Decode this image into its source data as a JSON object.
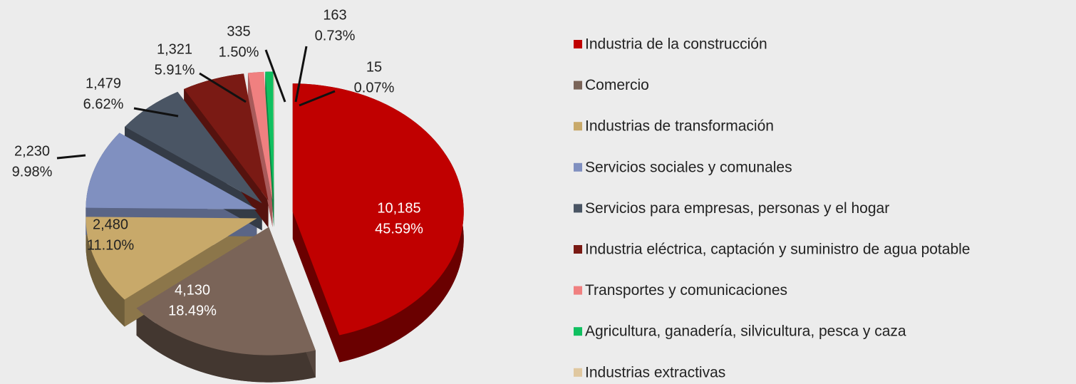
{
  "chart_data": {
    "type": "pie",
    "categories": [
      "Industria de la construcción",
      "Comercio",
      "Industrias de transformación",
      "Servicios sociales y comunales",
      "Servicios para empresas, personas y el hogar",
      "Industria eléctrica, captación y suministro de agua potable",
      "Transportes y comunicaciones",
      "Agricultura, ganadería, silvicultura, pesca y caza",
      "Industrias extractivas"
    ],
    "values": [
      10185,
      4130,
      2480,
      2230,
      1479,
      1321,
      335,
      163,
      15
    ],
    "value_labels": [
      "10,185",
      "4,130",
      "2,480",
      "2,230",
      "1,479",
      "1,321",
      "335",
      "163",
      "15"
    ],
    "percentages": [
      45.59,
      18.49,
      11.1,
      9.98,
      6.62,
      5.91,
      1.5,
      0.73,
      0.07
    ],
    "percentage_labels": [
      "45.59%",
      "18.49%",
      "11.10%",
      "9.98%",
      "6.62%",
      "5.91%",
      "1.50%",
      "0.73%",
      "0.07%"
    ],
    "colors": [
      "#c00000",
      "#7a6458",
      "#c8a96a",
      "#8090c0",
      "#4a5564",
      "#7a1a14",
      "#f08080",
      "#10c060",
      "#e0c8a0"
    ],
    "legend": "right"
  }
}
